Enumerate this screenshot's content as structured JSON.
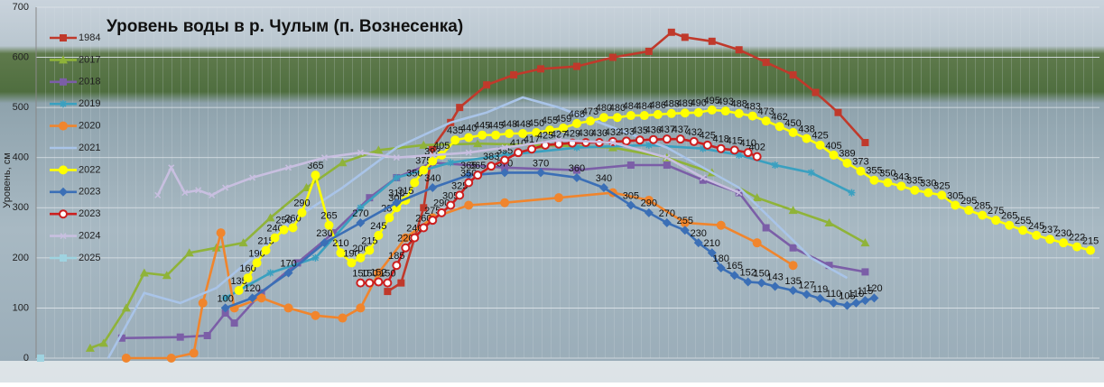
{
  "chart_data": {
    "type": "line",
    "title": "Уровень воды в р. Чулым (п. Вознесенка)",
    "y_label": "Уровень, см",
    "xlim": [
      0,
      118
    ],
    "ylim": [
      0,
      700
    ],
    "yticks": [
      0,
      100,
      200,
      300,
      400,
      500,
      600,
      700
    ],
    "grid": true,
    "legend": "upper left",
    "series": [
      {
        "name": "1984",
        "color": "#c0392b",
        "marker": "square",
        "labels": false,
        "x": [
          39,
          40.5,
          43,
          44,
          46,
          47,
          50,
          53,
          56,
          60,
          64,
          68,
          70.5,
          72,
          75,
          78,
          81,
          84,
          86.5,
          89,
          92
        ],
        "values": [
          133,
          150,
          300,
          420,
          470,
          500,
          545,
          565,
          577,
          582,
          600,
          612,
          650,
          640,
          632,
          615,
          590,
          565,
          530,
          490,
          430
        ]
      },
      {
        "name": "2017",
        "color": "#8fb339",
        "marker": "triangle",
        "labels": false,
        "x": [
          6,
          7.5,
          10,
          12,
          14.5,
          17,
          20,
          23,
          26,
          30,
          34,
          38,
          43,
          49,
          56,
          64,
          70,
          75,
          80,
          84,
          88,
          92
        ],
        "values": [
          20,
          30,
          100,
          170,
          165,
          210,
          220,
          230,
          280,
          340,
          390,
          415,
          425,
          428,
          425,
          420,
          400,
          370,
          320,
          295,
          270,
          230
        ]
      },
      {
        "name": "2018",
        "color": "#7b5ea7",
        "marker": "square",
        "labels": false,
        "x": [
          9.5,
          16,
          19,
          21,
          22,
          25,
          29,
          33,
          37,
          40,
          44,
          52,
          60,
          66,
          70,
          74,
          78,
          81,
          84,
          88,
          92
        ],
        "values": [
          40,
          42,
          45,
          90,
          70,
          130,
          190,
          250,
          320,
          360,
          390,
          380,
          375,
          385,
          385,
          355,
          330,
          260,
          220,
          185,
          172
        ]
      },
      {
        "name": "2019",
        "color": "#3aa0c0",
        "marker": "star",
        "labels": false,
        "x": [
          21,
          26,
          31,
          36,
          40,
          46,
          52,
          60,
          68,
          74,
          78,
          82,
          86,
          90.5
        ],
        "values": [
          120,
          170,
          200,
          300,
          360,
          390,
          405,
          420,
          425,
          418,
          405,
          385,
          370,
          330
        ]
      },
      {
        "name": "2020",
        "color": "#f0852d",
        "marker": "circle",
        "labels": false,
        "x": [
          10,
          15,
          17.5,
          18.5,
          20.5,
          22,
          25,
          28,
          31,
          34,
          36,
          38,
          41,
          44,
          48,
          52,
          58,
          64,
          68,
          72,
          76,
          80,
          84
        ],
        "values": [
          0,
          0,
          10,
          110,
          250,
          100,
          120,
          100,
          85,
          80,
          100,
          170,
          240,
          280,
          305,
          310,
          320,
          330,
          315,
          270,
          265,
          230,
          185
        ]
      },
      {
        "name": "2021",
        "color": "#a9c4e8",
        "marker": "none",
        "labels": false,
        "x": [
          8,
          12,
          16,
          20,
          24,
          28,
          34,
          40,
          46,
          50,
          54,
          58,
          64,
          70,
          74,
          78,
          82,
          86,
          90
        ],
        "values": [
          0,
          130,
          110,
          140,
          200,
          270,
          340,
          420,
          470,
          490,
          520,
          500,
          460,
          420,
          380,
          340,
          270,
          200,
          160
        ]
      },
      {
        "name": "2022",
        "color": "#ffff00",
        "marker": "circle",
        "labels": true,
        "x": [
          22.5,
          23.5,
          24.5,
          25.5,
          26.5,
          27.5,
          28.5,
          29.5,
          31,
          32.5,
          33.8,
          35,
          36,
          37,
          38,
          39.2,
          40,
          41,
          42,
          43,
          44,
          45,
          46.5,
          48,
          49.5,
          51,
          52.5,
          54,
          55.5,
          57,
          58.5,
          60,
          61.5,
          63,
          64.5,
          66,
          67.5,
          69,
          70.5,
          72,
          73.5,
          75,
          76.5,
          78,
          79.5,
          81,
          82.5,
          84,
          85.5,
          87,
          88.5,
          90,
          91.5,
          93,
          94.5,
          96,
          97.5,
          99,
          100.5,
          102,
          103.5,
          105,
          106.5,
          108,
          109.5,
          111,
          112.5,
          114,
          115.5,
          117
        ],
        "values": [
          135,
          160,
          190,
          215,
          240,
          256,
          260,
          290,
          365,
          265,
          210,
          190,
          200,
          215,
          245,
          280,
          300,
          315,
          350,
          375,
          393,
          405,
          435,
          440,
          445,
          445,
          448,
          448,
          450,
          455,
          459,
          468,
          473,
          480,
          480,
          484,
          484,
          486,
          488,
          489,
          490,
          495,
          493,
          488,
          483,
          473,
          462,
          450,
          438,
          425,
          405,
          389,
          373,
          355,
          350,
          343,
          335,
          330,
          325,
          305,
          295,
          285,
          275,
          265,
          255,
          245,
          237,
          230,
          222,
          215
        ]
      },
      {
        "name": "2023",
        "color": "#3b6fb6",
        "marker": "diamond",
        "labels": true,
        "x": [
          21,
          24,
          28,
          32,
          36,
          40,
          44,
          48,
          52,
          56,
          60,
          63,
          66,
          68,
          70,
          72,
          73.5,
          75,
          76,
          77.5,
          79,
          80.5,
          82,
          84,
          85.5,
          87,
          88.5,
          90,
          91,
          92,
          93
        ],
        "values": [
          100,
          120,
          170,
          230,
          270,
          310,
          340,
          365,
          370,
          370,
          360,
          340,
          305,
          290,
          270,
          255,
          230,
          210,
          180,
          165,
          152,
          150,
          143,
          135,
          127,
          119,
          110,
          105,
          110,
          115,
          120
        ]
      },
      {
        "name": "2023",
        "color": "#cc1f1f",
        "marker": "open-circle",
        "labels": true,
        "x": [
          36,
          37,
          38,
          39,
          40,
          41,
          42,
          43,
          44,
          45,
          46,
          47,
          48,
          49,
          50.5,
          52,
          53.5,
          55,
          56.5,
          58,
          59.5,
          61,
          62.5,
          64,
          65.5,
          67,
          68.5,
          70,
          71.5,
          73,
          74.5,
          76,
          77.5,
          79,
          80
        ],
        "values": [
          150,
          150,
          152,
          150,
          185,
          220,
          240,
          260,
          275,
          290,
          305,
          325,
          350,
          365,
          383,
          395,
          410,
          417,
          425,
          427,
          429,
          430,
          430,
          432,
          433,
          435,
          436,
          437,
          437,
          432,
          425,
          418,
          415,
          410,
          402
        ]
      },
      {
        "name": "2024",
        "color": "#c8bfe0",
        "marker": "x",
        "labels": false,
        "x": [
          13.5,
          15,
          16.5,
          18,
          19.5,
          21,
          24,
          28,
          32,
          36,
          40,
          44,
          48,
          52,
          58,
          64,
          70,
          74,
          78
        ],
        "values": [
          325,
          380,
          330,
          335,
          325,
          340,
          360,
          380,
          400,
          410,
          400,
          405,
          410,
          420,
          435,
          430,
          400,
          360,
          330
        ]
      },
      {
        "name": "2025",
        "color": "#9fd3e0",
        "marker": "square",
        "labels": false,
        "x": [
          0.5
        ],
        "values": [
          0
        ]
      }
    ]
  }
}
